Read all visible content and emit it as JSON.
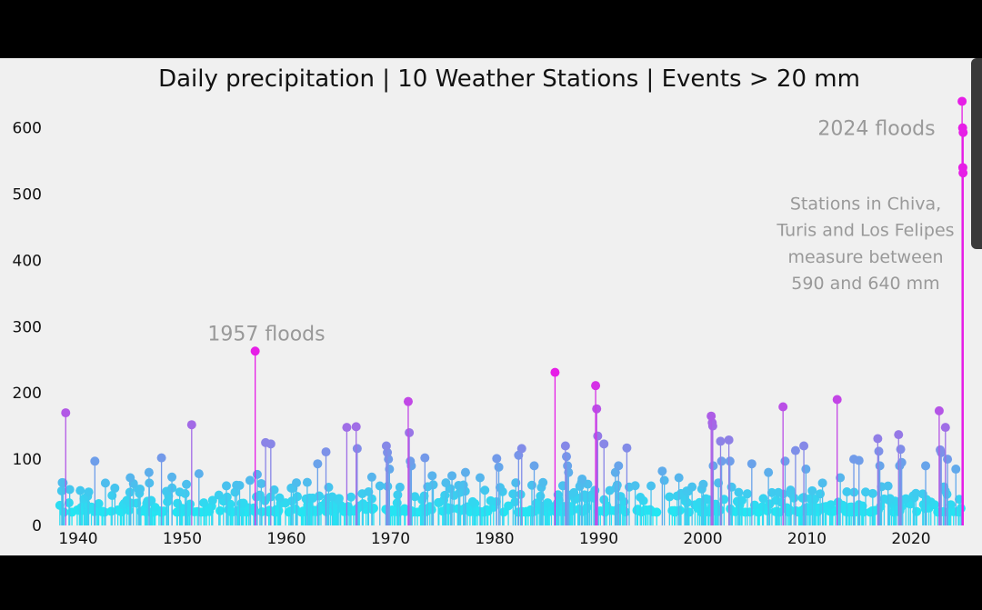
{
  "chart_data": {
    "type": "stem",
    "title": "Daily precipitation | 10 Weather Stations | Events > 20 mm",
    "xlabel": "",
    "ylabel": "",
    "xlim": [
      1937,
      2026
    ],
    "ylim": [
      0,
      650
    ],
    "x_ticks": [
      1940,
      1950,
      1960,
      1970,
      1980,
      1990,
      2000,
      2010,
      2020
    ],
    "y_ticks": [
      0,
      100,
      200,
      300,
      400,
      500,
      600
    ],
    "color_scale": {
      "low": "#22e6f2",
      "mid": "#8f7fe6",
      "high": "#e61ee6"
    },
    "annotations": [
      {
        "text": "1957 floods",
        "x": 1957.2,
        "y": 290
      },
      {
        "text": "2024 floods",
        "x": 2017.6,
        "y": 600
      },
      {
        "text": "Stations in Chiva,",
        "x": 2017.5,
        "y": 485
      },
      {
        "text": "Turis and Los Felipes",
        "x": 2017.5,
        "y": 445
      },
      {
        "text": "measure between",
        "x": 2017.5,
        "y": 405
      },
      {
        "text": "590 and 640 mm",
        "x": 2017.5,
        "y": 365
      }
    ],
    "events": [
      [
        1938.8,
        170
      ],
      [
        1941.6,
        97
      ],
      [
        1945,
        72
      ],
      [
        1946.8,
        80
      ],
      [
        1948,
        102
      ],
      [
        1949,
        73
      ],
      [
        1950.4,
        62
      ],
      [
        1950.9,
        152
      ],
      [
        1951.6,
        78
      ],
      [
        1956.5,
        68
      ],
      [
        1957,
        263
      ],
      [
        1957.2,
        77
      ],
      [
        1958,
        125
      ],
      [
        1958.5,
        123
      ],
      [
        1962,
        65
      ],
      [
        1963,
        93
      ],
      [
        1963.8,
        111
      ],
      [
        1965.8,
        148
      ],
      [
        1966.7,
        149
      ],
      [
        1966.8,
        116
      ],
      [
        1968.2,
        73
      ],
      [
        1969.6,
        120
      ],
      [
        1969.7,
        110
      ],
      [
        1969.8,
        100
      ],
      [
        1969.9,
        85
      ],
      [
        1971.7,
        187
      ],
      [
        1971.8,
        140
      ],
      [
        1971.9,
        97
      ],
      [
        1972,
        90
      ],
      [
        1973.3,
        102
      ],
      [
        1974,
        75
      ],
      [
        1975.9,
        75
      ],
      [
        1977.2,
        80
      ],
      [
        1978.6,
        72
      ],
      [
        1980.2,
        101
      ],
      [
        1980.4,
        88
      ],
      [
        1982.3,
        106
      ],
      [
        1982.6,
        116
      ],
      [
        1983.8,
        90
      ],
      [
        1985.8,
        231
      ],
      [
        1986.8,
        120
      ],
      [
        1986.9,
        104
      ],
      [
        1987,
        90
      ],
      [
        1987.1,
        80
      ],
      [
        1988.4,
        70
      ],
      [
        1989.7,
        211
      ],
      [
        1989.8,
        176
      ],
      [
        1989.9,
        135
      ],
      [
        1990.5,
        123
      ],
      [
        1991.6,
        80
      ],
      [
        1991.9,
        90
      ],
      [
        1992.7,
        117
      ],
      [
        1993.5,
        60
      ],
      [
        1996.1,
        82
      ],
      [
        1996.3,
        68
      ],
      [
        1997.7,
        72
      ],
      [
        1999.9,
        55
      ],
      [
        2000.8,
        165
      ],
      [
        2000.9,
        155
      ],
      [
        2000.95,
        150
      ],
      [
        2001,
        90
      ],
      [
        2001.7,
        127
      ],
      [
        2001.8,
        97
      ],
      [
        2002.5,
        129
      ],
      [
        2002.6,
        97
      ],
      [
        2004.7,
        93
      ],
      [
        2006.3,
        80
      ],
      [
        2007.7,
        179
      ],
      [
        2007.9,
        97
      ],
      [
        2008.9,
        113
      ],
      [
        2009.7,
        120
      ],
      [
        2009.9,
        85
      ],
      [
        2012.9,
        190
      ],
      [
        2013.2,
        72
      ],
      [
        2014.5,
        100
      ],
      [
        2015,
        98
      ],
      [
        2016.8,
        131
      ],
      [
        2016.9,
        112
      ],
      [
        2017,
        90
      ],
      [
        2018.8,
        137
      ],
      [
        2019,
        115
      ],
      [
        2019.1,
        95
      ],
      [
        2018.9,
        90
      ],
      [
        2021.4,
        90
      ],
      [
        2022.7,
        173
      ],
      [
        2022.8,
        114
      ],
      [
        2022.9,
        110
      ],
      [
        2023.3,
        148
      ],
      [
        2023.5,
        100
      ],
      [
        2024.3,
        85
      ],
      [
        2024.6,
        20
      ],
      [
        2024.9,
        640
      ],
      [
        2024.95,
        600
      ],
      [
        2025,
        593
      ],
      [
        2024.97,
        540
      ],
      [
        2024.99,
        532
      ]
    ]
  }
}
